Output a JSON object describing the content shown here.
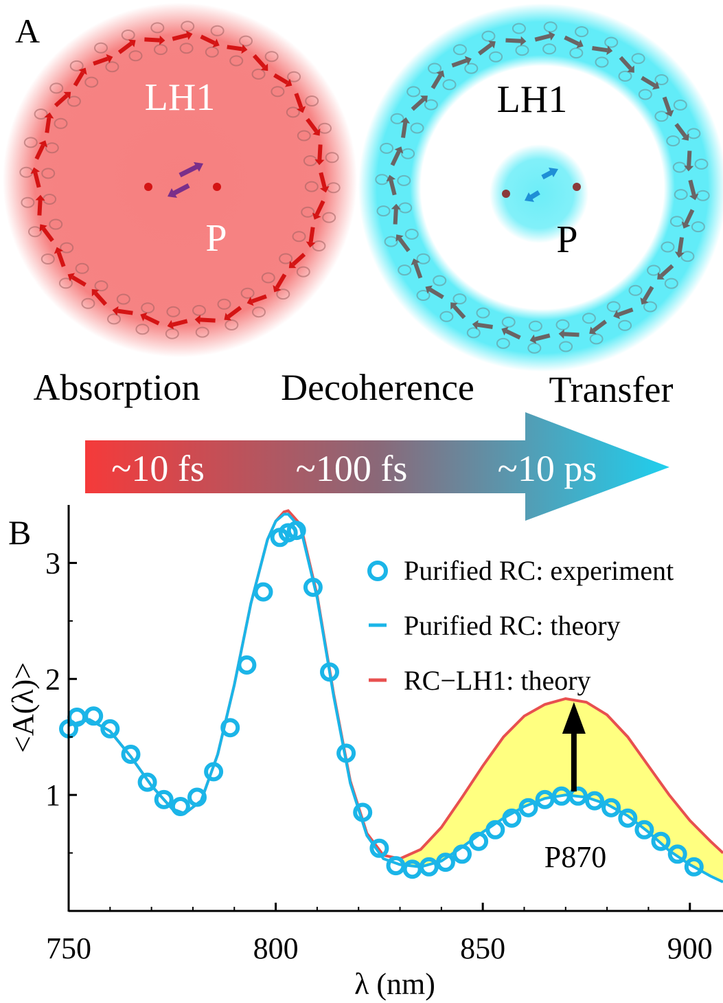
{
  "panel_a": {
    "label": "A",
    "left_ring_label": "LH1",
    "left_center_label": "P",
    "right_ring_label": "LH1",
    "right_center_label": "P",
    "colors": {
      "absorption_glow": "#f25a5a",
      "transfer_glow": "#2ee6f5",
      "arrow_red": "#d41414",
      "arrow_gray": "#6a6464",
      "arrow_purple": "#7a2f8a",
      "arrow_blue": "#1f8fd6"
    },
    "stages": [
      "Absorption",
      "Decoherence",
      "Transfer"
    ],
    "timescales": [
      "~10 fs",
      "~100 fs",
      "~10 ps"
    ],
    "timeline_colors": [
      "#f53a3a",
      "#1fcfee"
    ]
  },
  "panel_b": {
    "label": "B",
    "annotation": "P870"
  },
  "chart_data": {
    "type": "line",
    "xlabel": "λ (nm)",
    "ylabel": "<A(λ)>",
    "xlim": [
      750,
      908
    ],
    "ylim": [
      0,
      3.5
    ],
    "xticks": [
      750,
      800,
      850,
      900
    ],
    "yticks": [
      1,
      2,
      3
    ],
    "grid": false,
    "legend_position": "top-right",
    "fill_between": {
      "upper": "RC−LH1: theory",
      "lower": "Purified RC: theory",
      "x_from": 830,
      "color": "#ffff80"
    },
    "arrow": {
      "x": 872,
      "from_y": 1.03,
      "to_y": 1.8
    },
    "series": [
      {
        "name": "Purified RC: experiment",
        "style": "markers",
        "color": "#1bb5e8",
        "x": [
          750,
          752,
          756,
          760,
          765,
          769,
          773,
          777,
          781,
          785,
          789,
          793,
          797,
          801,
          803,
          805,
          809,
          813,
          817,
          821,
          825,
          829,
          833,
          837,
          841,
          845,
          849,
          853,
          857,
          861,
          865,
          869,
          873,
          877,
          881,
          885,
          889,
          893,
          897,
          901
        ],
        "y": [
          1.57,
          1.67,
          1.68,
          1.57,
          1.35,
          1.11,
          0.96,
          0.9,
          0.98,
          1.2,
          1.58,
          2.12,
          2.75,
          3.22,
          3.26,
          3.28,
          2.79,
          2.06,
          1.36,
          0.85,
          0.54,
          0.39,
          0.36,
          0.38,
          0.42,
          0.49,
          0.6,
          0.7,
          0.8,
          0.89,
          0.96,
          0.99,
          0.99,
          0.95,
          0.89,
          0.8,
          0.7,
          0.6,
          0.49,
          0.38
        ]
      },
      {
        "name": "Purified RC: theory",
        "style": "line",
        "color": "#1bb5e8",
        "x": [
          750,
          755,
          760,
          765,
          770,
          775,
          778,
          782,
          786,
          790,
          794,
          798,
          800,
          802,
          803,
          806,
          810,
          814,
          818,
          822,
          826,
          830,
          835,
          840,
          845,
          850,
          855,
          860,
          865,
          870,
          875,
          880,
          885,
          890,
          895,
          900,
          905,
          908
        ],
        "y": [
          1.6,
          1.65,
          1.55,
          1.33,
          1.08,
          0.88,
          0.84,
          0.95,
          1.35,
          1.95,
          2.65,
          3.2,
          3.36,
          3.42,
          3.42,
          3.3,
          2.7,
          1.85,
          1.1,
          0.65,
          0.45,
          0.4,
          0.38,
          0.43,
          0.55,
          0.68,
          0.8,
          0.9,
          0.97,
          1.0,
          0.98,
          0.92,
          0.82,
          0.68,
          0.52,
          0.4,
          0.3,
          0.25
        ]
      },
      {
        "name": "RC−LH1: theory",
        "style": "line",
        "color": "#e8504f",
        "x": [
          750,
          755,
          760,
          765,
          770,
          775,
          778,
          782,
          786,
          790,
          794,
          798,
          800,
          802,
          803,
          806,
          810,
          814,
          818,
          822,
          826,
          830,
          835,
          840,
          845,
          850,
          855,
          860,
          865,
          870,
          875,
          880,
          885,
          890,
          895,
          900,
          905,
          908
        ],
        "y": [
          1.6,
          1.65,
          1.55,
          1.33,
          1.08,
          0.88,
          0.84,
          0.95,
          1.35,
          1.95,
          2.65,
          3.2,
          3.36,
          3.44,
          3.45,
          3.33,
          2.72,
          1.87,
          1.12,
          0.67,
          0.48,
          0.45,
          0.53,
          0.72,
          0.98,
          1.25,
          1.5,
          1.68,
          1.78,
          1.83,
          1.8,
          1.69,
          1.5,
          1.25,
          1.0,
          0.78,
          0.6,
          0.5
        ]
      }
    ]
  }
}
